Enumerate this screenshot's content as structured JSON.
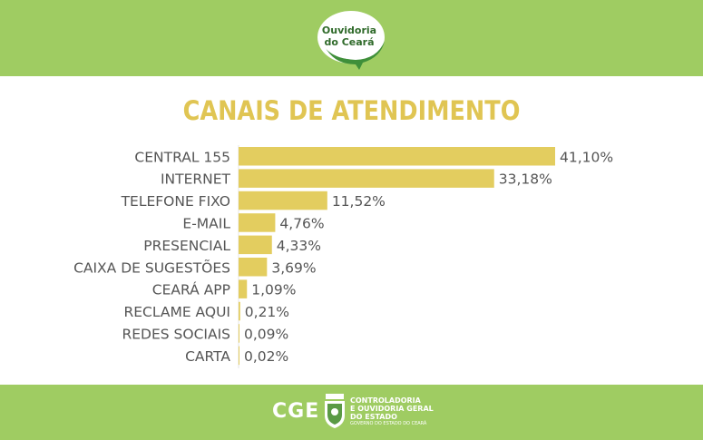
{
  "logo": {
    "line1": "Ouvidoria",
    "line2": "do Ceará"
  },
  "colors": {
    "band": "#9fcc62",
    "bar": "#e3cd5f",
    "title": "#e0c553",
    "label": "#555555"
  },
  "chart_data": {
    "type": "bar",
    "orientation": "horizontal",
    "title": "CANAIS DE ATENDIMENTO",
    "categories": [
      "CENTRAL 155",
      "INTERNET",
      "TELEFONE FIXO",
      "E-MAIL",
      "PRESENCIAL",
      "CAIXA DE SUGESTÕES",
      "CEARÁ APP",
      "RECLAME AQUI",
      "REDES SOCIAIS",
      "CARTA"
    ],
    "values": [
      41.1,
      33.18,
      11.52,
      4.76,
      4.33,
      3.69,
      1.09,
      0.21,
      0.09,
      0.02
    ],
    "value_labels": [
      "41,10%",
      "33,18%",
      "11,52%",
      "4,76%",
      "4,33%",
      "3,69%",
      "1,09%",
      "0,21%",
      "0,09%",
      "0,02%"
    ],
    "xlim": [
      0,
      41.1
    ],
    "grid": false,
    "legend": "none"
  },
  "footer": {
    "brand": "CGE",
    "org_line1": "CONTROLADORIA",
    "org_line2": "E OUVIDORIA GERAL",
    "org_line3": "DO ESTADO",
    "org_line4": "GOVERNO DO ESTADO DO CEARÁ"
  }
}
